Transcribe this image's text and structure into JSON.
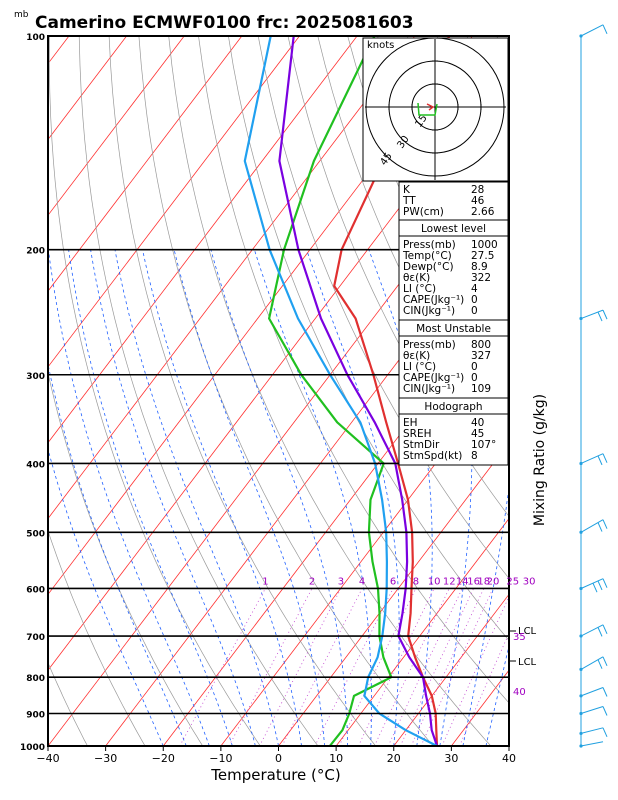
{
  "chart_data": {
    "type": "line",
    "title": "Camerino ECMWF0100  frc: 2025081603",
    "pressure_unit_label": "mb",
    "xlabel": "Temperature (°C)",
    "right_axis_label": "Mixing Ratio  (g/kg)",
    "xlim": [
      -40,
      40
    ],
    "ylim_mb": [
      1000,
      100
    ],
    "x_ticks": [
      "−40",
      "−30",
      "−20",
      "−10",
      "0",
      "10",
      "20",
      "30",
      "40"
    ],
    "pressure_levels": [
      1000,
      900,
      800,
      700,
      600,
      500,
      400,
      300,
      200,
      100
    ],
    "pressure_tick_labels": [
      "1000",
      "900",
      "800",
      "700",
      "600",
      "500",
      "400",
      "300",
      "200",
      "100"
    ],
    "mixing_ratio_labels": [
      "1",
      "2",
      "3",
      "4",
      "6",
      "8",
      "10",
      "12",
      "14",
      "16",
      "18",
      "20",
      "25",
      "30"
    ],
    "mixing_ratio_values": [
      1,
      2,
      3,
      4,
      6,
      8,
      10,
      12,
      14,
      16,
      18,
      20,
      25,
      30
    ],
    "lcl_labels": [
      "LCL",
      "LCL"
    ],
    "theta_e_labels": [
      "35",
      "40"
    ],
    "series": [
      {
        "role": "temperature",
        "color": "#e03030",
        "points": [
          [
            1000,
            27.5
          ],
          [
            950,
            25.3
          ],
          [
            900,
            23
          ],
          [
            850,
            20
          ],
          [
            800,
            16
          ],
          [
            750,
            12
          ],
          [
            700,
            8
          ],
          [
            650,
            5.4
          ],
          [
            600,
            2.3
          ],
          [
            550,
            -1
          ],
          [
            500,
            -5
          ],
          [
            450,
            -10
          ],
          [
            400,
            -16.5
          ],
          [
            350,
            -24
          ],
          [
            300,
            -32.5
          ],
          [
            250,
            -43
          ],
          [
            225,
            -51
          ],
          [
            200,
            -54.5
          ],
          [
            150,
            -59
          ],
          [
            100,
            -64
          ]
        ]
      },
      {
        "role": "dewpoint",
        "color": "#20c020",
        "points": [
          [
            1000,
            8.9
          ],
          [
            950,
            9
          ],
          [
            900,
            8
          ],
          [
            850,
            6.5
          ],
          [
            800,
            10.5
          ],
          [
            750,
            6.5
          ],
          [
            700,
            3
          ],
          [
            650,
            0
          ],
          [
            600,
            -3.5
          ],
          [
            550,
            -8
          ],
          [
            500,
            -12.5
          ],
          [
            450,
            -16.5
          ],
          [
            400,
            -19
          ],
          [
            350,
            -32.5
          ],
          [
            300,
            -45
          ],
          [
            250,
            -58
          ],
          [
            200,
            -64.5
          ],
          [
            150,
            -71
          ],
          [
            100,
            -77
          ]
        ]
      },
      {
        "role": "parcel_virtual_temperature",
        "color": "#7a00e0",
        "points": [
          [
            1000,
            27.5
          ],
          [
            950,
            24.5
          ],
          [
            900,
            22
          ],
          [
            850,
            19
          ],
          [
            800,
            16
          ],
          [
            750,
            11
          ],
          [
            700,
            6.3
          ],
          [
            650,
            4
          ],
          [
            600,
            1.3
          ],
          [
            550,
            -2
          ],
          [
            500,
            -6
          ],
          [
            450,
            -11
          ],
          [
            400,
            -17
          ],
          [
            350,
            -26
          ],
          [
            300,
            -37
          ],
          [
            250,
            -49
          ],
          [
            200,
            -62
          ],
          [
            150,
            -77
          ],
          [
            100,
            -91
          ]
        ]
      },
      {
        "role": "parcel_lifted",
        "color": "#20a0f0",
        "points": [
          [
            1000,
            27.5
          ],
          [
            950,
            20
          ],
          [
            900,
            13.2
          ],
          [
            850,
            8.3
          ],
          [
            800,
            6.5
          ],
          [
            750,
            5.5
          ],
          [
            700,
            3.5
          ],
          [
            650,
            1
          ],
          [
            600,
            -2
          ],
          [
            550,
            -5.5
          ],
          [
            500,
            -9.5
          ],
          [
            450,
            -14.5
          ],
          [
            400,
            -20.5
          ],
          [
            350,
            -28.5
          ],
          [
            300,
            -40
          ],
          [
            250,
            -53
          ],
          [
            200,
            -67
          ],
          [
            150,
            -83
          ],
          [
            100,
            -95
          ]
        ]
      }
    ],
    "hodograph": {
      "units_label": "knots",
      "ring_labels": [
        "15",
        "30",
        "45"
      ],
      "ring_values_kt": [
        15,
        30,
        45
      ]
    },
    "indices": {
      "header": [
        {
          "name": "K",
          "value": "28"
        },
        {
          "name": "TT",
          "value": "46"
        },
        {
          "name": "PW(cm)",
          "value": "2.66"
        }
      ],
      "sections": [
        {
          "title": "Lowest level",
          "rows": [
            {
              "name": "Press(mb)",
              "value": "1000"
            },
            {
              "name": "Temp(°C)",
              "value": "27.5"
            },
            {
              "name": "Dewp(°C)",
              "value": "8.9"
            },
            {
              "name": "θε(K)",
              "value": "322"
            },
            {
              "name": "LI (°C)",
              "value": "4"
            },
            {
              "name": "CAPE(Jkg⁻¹)",
              "value": "0"
            },
            {
              "name": "CIN(Jkg⁻¹)",
              "value": "0"
            }
          ]
        },
        {
          "title": "Most Unstable",
          "rows": [
            {
              "name": "Press(mb)",
              "value": "800"
            },
            {
              "name": "θε(K)",
              "value": "327"
            },
            {
              "name": "LI (°C)",
              "value": "0"
            },
            {
              "name": "CAPE(Jkg⁻¹)",
              "value": "0"
            },
            {
              "name": "CIN(Jkg⁻¹)",
              "value": "109"
            }
          ]
        },
        {
          "title": "Hodograph",
          "rows": [
            {
              "name": "EH",
              "value": "40"
            },
            {
              "name": "SREH",
              "value": "45"
            },
            {
              "name": "StmDir",
              "value": "107°"
            },
            {
              "name": "StmSpd(kt)",
              "value": "8"
            }
          ]
        }
      ]
    },
    "colors": {
      "isotherm": "#ff3030",
      "dry_adiabat": "#999999",
      "moist_adiabat": "#2060ff",
      "mixing_ratio_line": "#c040d0",
      "barbs": "#20a0e0"
    }
  }
}
